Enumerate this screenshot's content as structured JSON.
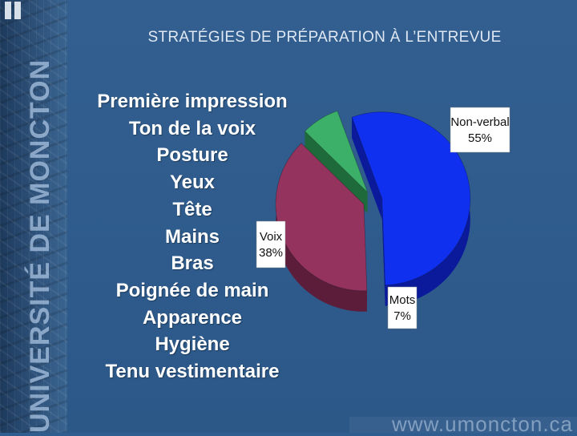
{
  "slide": {
    "title": "STRATÉGIES DE PRÉPARATION À L’ENTREVUE",
    "side_text": "UNIVERSITÉ DE MONCTON",
    "footer_url": "www.umoncton.ca",
    "items": [
      "Première impression",
      "Ton de la voix",
      "Posture",
      "Yeux",
      "Tête",
      "Mains",
      "Bras",
      "Poignée de main",
      "Apparence",
      "Hygiène",
      "Tenu vestimentaire"
    ]
  },
  "chart_data": {
    "type": "pie",
    "title": "",
    "slices": [
      {
        "name": "Non-verbal",
        "value": 55,
        "label": "55%",
        "color": "#1030f0",
        "side_color": "#0a1a9a"
      },
      {
        "name": "Voix",
        "value": 38,
        "label": "38%",
        "color": "#93335e",
        "side_color": "#5c1d3a"
      },
      {
        "name": "Mots",
        "value": 7,
        "label": "7%",
        "color": "#3cb068",
        "side_color": "#1f6a3a"
      }
    ],
    "style": "3d-exploded",
    "legend": "callout-labels"
  }
}
